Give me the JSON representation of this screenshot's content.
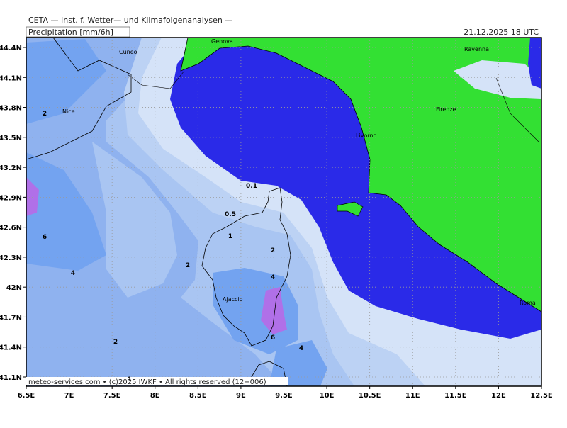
{
  "header": "CETA — Inst. f. Wetter— und Klimafolgenanalysen —",
  "title": "Precipitation [mm/6h]",
  "valid_time": "21.12.2025 18 UTC",
  "lat_labels": [
    "44.4N",
    "44.1N",
    "43.8N",
    "43.5N",
    "43.2N",
    "42.9N",
    "42.6N",
    "42.3N",
    "42N",
    "41.7N",
    "41.4N",
    "41.1N"
  ],
  "lon_labels": [
    "6.5E",
    "7E",
    "7.5E",
    "8E",
    "8.5E",
    "9E",
    "9.5E",
    "10E",
    "10.5E",
    "11E",
    "11.5E",
    "12E",
    "12.5E"
  ],
  "places": [
    "Cuneo",
    "Genova",
    "Ravenna",
    "Nice",
    "Firenze",
    "Livorno",
    "Ajaccio",
    "Roma"
  ],
  "contour_labels": [
    "0.1",
    "0.5",
    "1",
    "2",
    "2",
    "4",
    "6",
    "4",
    "2",
    "6",
    "4",
    "2",
    "1"
  ],
  "footer": "meteo-services.com • (c)2025 IWKF • All rights reserved (12+006)"
}
